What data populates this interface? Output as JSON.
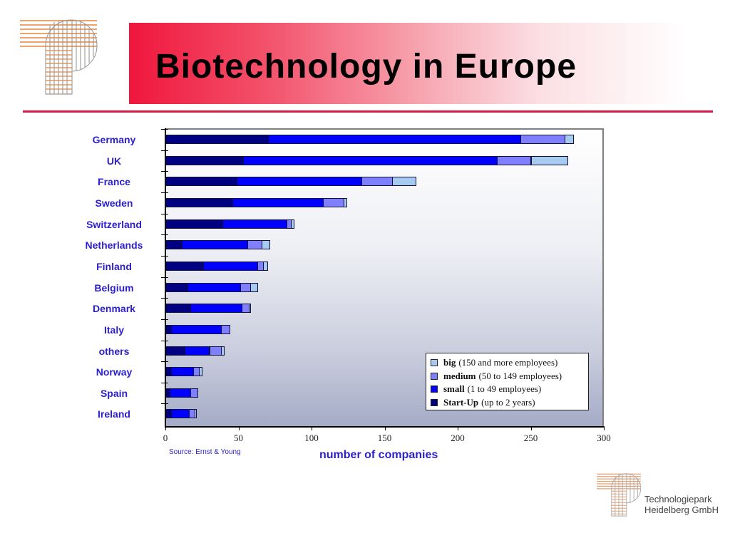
{
  "slide": {
    "title": "Biotechnology in Europe",
    "banner_color": "#f0163c",
    "rule_color": "#d41c45"
  },
  "footer": {
    "source": "Source: Ernst & Young",
    "company_line1": "Technologiepark",
    "company_line2": "Heidelberg GmbH"
  },
  "chart_data": {
    "type": "bar",
    "orientation": "horizontal",
    "stacked": true,
    "title": "Biotechnology in Europe",
    "xlabel": "number of companies",
    "ylabel": "",
    "xlim": [
      0,
      300
    ],
    "xticks": [
      0,
      50,
      100,
      150,
      200,
      250,
      300
    ],
    "grid": false,
    "legend_position": "lower right",
    "categories": [
      "Germany",
      "UK",
      "France",
      "Sweden",
      "Switzerland",
      "Netherlands",
      "Finland",
      "Belgium",
      "Denmark",
      "Italy",
      "others",
      "Norway",
      "Spain",
      "Ireland"
    ],
    "series": [
      {
        "name": "Start-Up (up to 2 years)",
        "key": "startup",
        "color": "#000080",
        "values": [
          70,
          53,
          49,
          46,
          39,
          11,
          26,
          15,
          17,
          4,
          13,
          4,
          3,
          4
        ]
      },
      {
        "name": "small (1 to 49 employees)",
        "key": "small",
        "color": "#0000ff",
        "values": [
          173,
          174,
          85,
          62,
          44,
          45,
          37,
          36,
          35,
          34,
          17,
          15,
          14,
          12
        ]
      },
      {
        "name": "medium (50 to 149 employees)",
        "key": "medium",
        "color": "#8080ff",
        "values": [
          30,
          23,
          21,
          14,
          3,
          10,
          4,
          7,
          5,
          6,
          8,
          4,
          5,
          4
        ]
      },
      {
        "name": "big (150 and more employees)",
        "key": "big",
        "color": "#a6caf0",
        "values": [
          6,
          25,
          16,
          2,
          2,
          5,
          3,
          5,
          1,
          0,
          2,
          2,
          0,
          1
        ]
      }
    ],
    "totals": [
      279,
      275,
      171,
      124,
      88,
      71,
      70,
      63,
      58,
      44,
      40,
      25,
      22,
      21
    ],
    "source": "Source: Ernst & Young"
  },
  "legend": [
    {
      "bold": "big",
      "rest": "(150 and more employees)",
      "color": "#a6caf0"
    },
    {
      "bold": "medium",
      "rest": "(50 to 149 employees)",
      "color": "#8080ff"
    },
    {
      "bold": "small",
      "rest": "(1 to 49 employees)",
      "color": "#0000ff"
    },
    {
      "bold": "Start-Up",
      "rest": "(up to 2 years)",
      "color": "#000080"
    }
  ],
  "icons": {
    "logo_top": "tp-logo-icon",
    "logo_bottom": "tp-logo-icon"
  }
}
